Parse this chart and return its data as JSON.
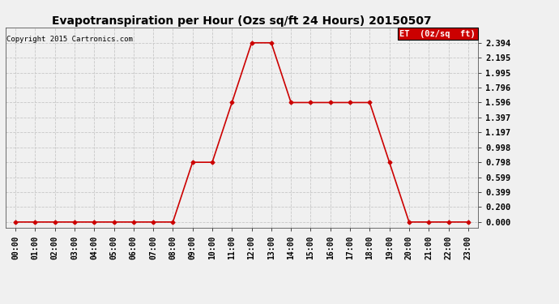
{
  "title": "Evapotranspiration per Hour (Ozs sq/ft 24 Hours) 20150507",
  "copyright": "Copyright 2015 Cartronics.com",
  "legend_label": "ET  (0z/sq  ft)",
  "hours": [
    "00:00",
    "01:00",
    "02:00",
    "03:00",
    "04:00",
    "05:00",
    "06:00",
    "07:00",
    "08:00",
    "09:00",
    "10:00",
    "11:00",
    "12:00",
    "13:00",
    "14:00",
    "15:00",
    "16:00",
    "17:00",
    "18:00",
    "19:00",
    "20:00",
    "21:00",
    "22:00",
    "23:00"
  ],
  "values": [
    0.0,
    0.0,
    0.0,
    0.0,
    0.0,
    0.0,
    0.0,
    0.0,
    0.0,
    0.798,
    0.798,
    1.596,
    2.394,
    2.394,
    1.596,
    1.596,
    1.596,
    1.596,
    1.596,
    0.798,
    0.0,
    0.0,
    0.0,
    0.0
  ],
  "line_color": "#cc0000",
  "marker": "D",
  "marker_size": 2.5,
  "line_width": 1.2,
  "yticks": [
    0.0,
    0.2,
    0.399,
    0.599,
    0.798,
    0.998,
    1.197,
    1.397,
    1.596,
    1.796,
    1.995,
    2.195,
    2.394
  ],
  "ylim_min": -0.08,
  "ylim_max": 2.6,
  "bg_color": "#f0f0f0",
  "plot_bg_color": "#f0f0f0",
  "grid_color": "#c8c8c8",
  "title_fontsize": 10,
  "legend_bg": "#cc0000",
  "legend_text_color": "#ffffff",
  "copyright_fontsize": 6.5,
  "ytick_fontsize": 7.5,
  "xtick_fontsize": 7
}
